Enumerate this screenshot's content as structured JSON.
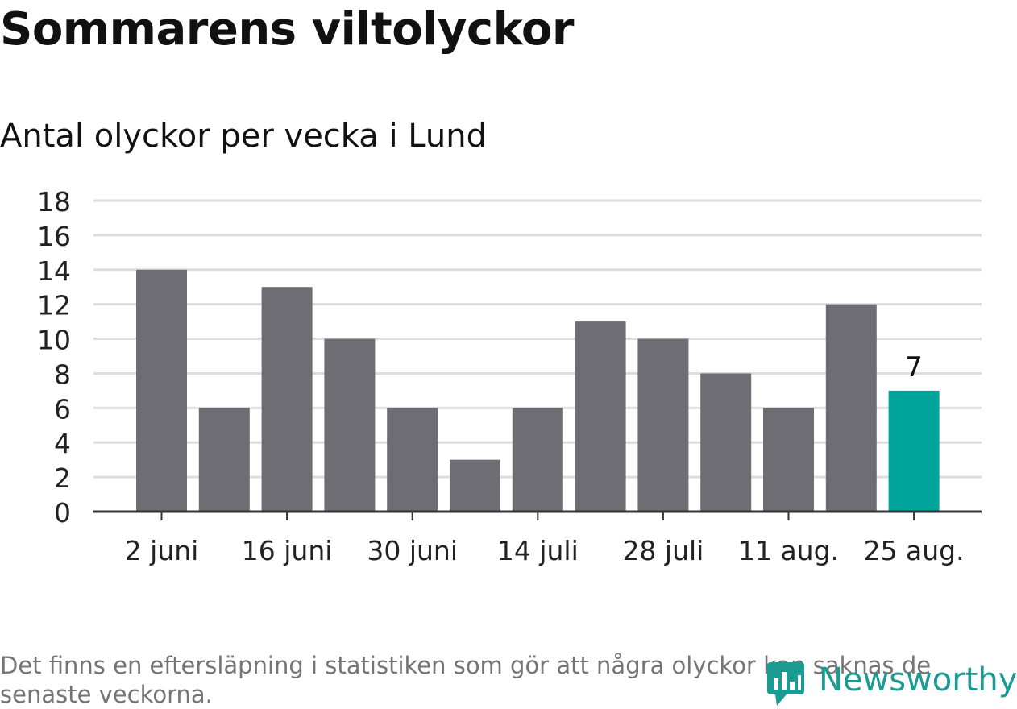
{
  "title": "Sommarens viltolyckor",
  "subtitle": "Antal olyckor per vecka i Lund",
  "note": "Det finns en eftersläpning i statistiken som gör att några olyckor kan saknas de senaste veckorna.",
  "brand": "Newsworthy",
  "colors": {
    "bar": "#6e6d73",
    "highlight": "#00a49b",
    "grid": "#dddddd",
    "axis": "#333333",
    "brand": "#1a9c93"
  },
  "chart_data": {
    "type": "bar",
    "title": "Sommarens viltolyckor",
    "subtitle": "Antal olyckor per vecka i Lund",
    "x_tick_labels": [
      "2 juni",
      "16 juni",
      "30 juni",
      "14 juli",
      "28 juli",
      "11 aug.",
      "25 aug."
    ],
    "values": [
      14,
      6,
      13,
      10,
      6,
      3,
      6,
      11,
      10,
      8,
      6,
      12,
      7
    ],
    "highlight_index": 12,
    "highlight_label": "7",
    "y_ticks": [
      0,
      2,
      4,
      6,
      8,
      10,
      12,
      14,
      16,
      18
    ],
    "ylim": [
      0,
      18
    ],
    "grid": true,
    "legend": "none"
  }
}
